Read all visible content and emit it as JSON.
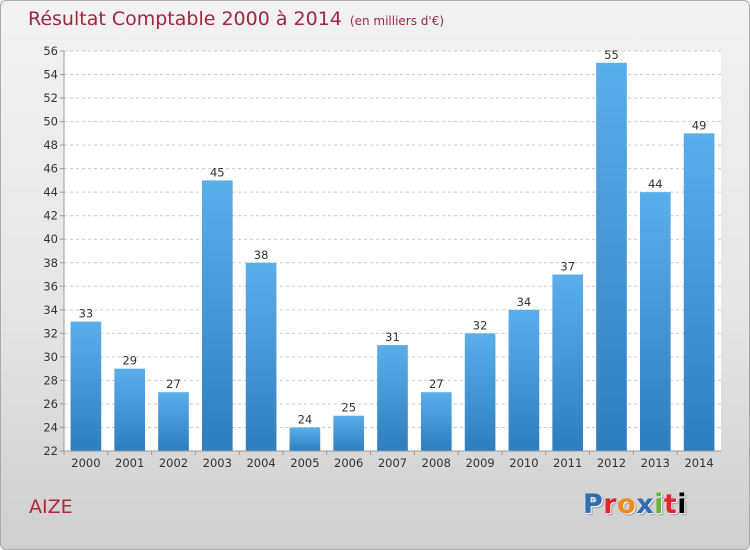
{
  "header": {
    "title": "Résultat Comptable 2000 à 2014",
    "subtitle": "(en milliers d'€)"
  },
  "footer": {
    "place": "AIZE",
    "logo": "Proxiti"
  },
  "colors": {
    "title": "#a0263e",
    "bar_top": "#5aaeea",
    "bar_bottom": "#2e7ebf",
    "grid": "#c9c9c9"
  },
  "chart_data": {
    "type": "bar",
    "title": "Résultat Comptable 2000 à 2014",
    "subtitle": "(en milliers d'€)",
    "xlabel": "",
    "ylabel": "",
    "categories": [
      "2000",
      "2001",
      "2002",
      "2003",
      "2004",
      "2005",
      "2006",
      "2007",
      "2008",
      "2009",
      "2010",
      "2011",
      "2012",
      "2013",
      "2014"
    ],
    "values": [
      33,
      29,
      27,
      45,
      38,
      24,
      25,
      31,
      27,
      32,
      34,
      37,
      55,
      44,
      49
    ],
    "ylim": [
      22,
      56
    ],
    "ytick_step": 2,
    "grid": true,
    "data_labels": true
  }
}
